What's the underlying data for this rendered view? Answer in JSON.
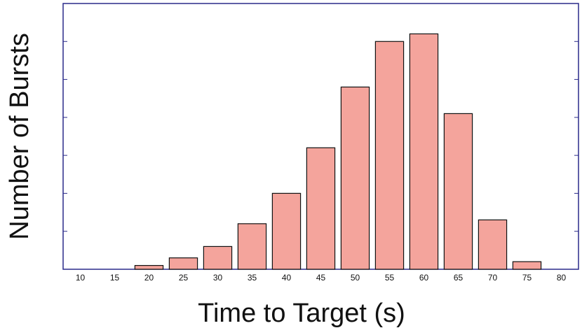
{
  "chart_data": {
    "type": "bar",
    "x_label": "Time to Target (s)",
    "y_label": "Number of Bursts",
    "categories": [
      "10",
      "15",
      "20",
      "25",
      "30",
      "35",
      "40",
      "45",
      "50",
      "55",
      "60",
      "65",
      "70",
      "75",
      "80"
    ],
    "values": [
      0,
      0,
      0.1,
      0.3,
      0.6,
      1.2,
      2.0,
      3.2,
      4.8,
      6.0,
      6.2,
      4.1,
      1.3,
      0.2,
      0
    ],
    "color": "#f4a49c",
    "ylim": [
      0,
      7
    ],
    "yticks": [
      1,
      2,
      3,
      4,
      5,
      6
    ]
  }
}
